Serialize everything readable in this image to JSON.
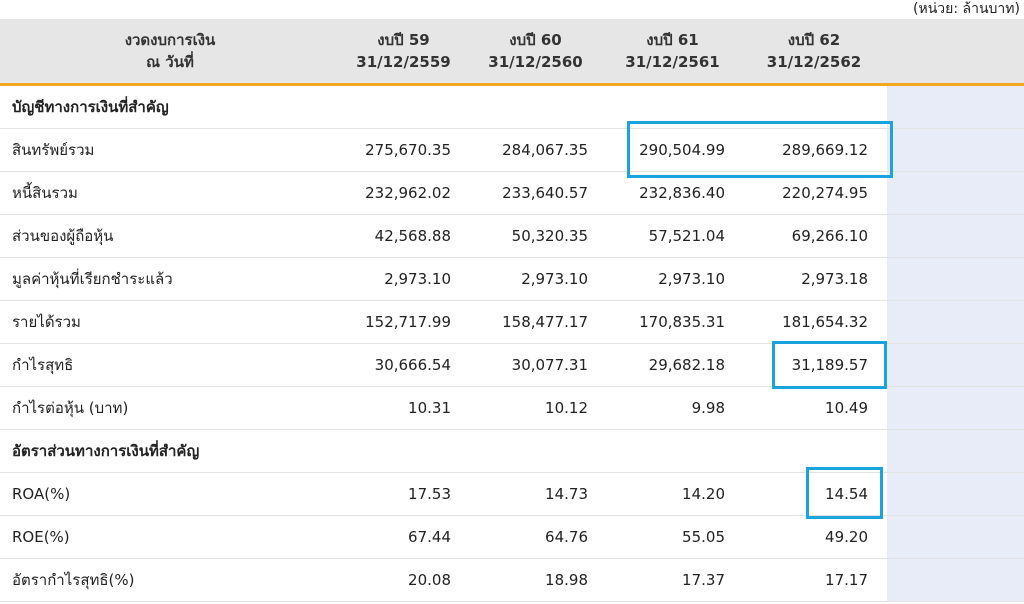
{
  "unit_label": "(หน่วย: ล้านบาท)",
  "header": {
    "label_line1": "งวดงบการเงิน",
    "label_line2": "ณ วันที่",
    "periods": [
      {
        "line1": "งบปี 59",
        "line2": "31/12/2559"
      },
      {
        "line1": "งบปี 60",
        "line2": "31/12/2560"
      },
      {
        "line1": "งบปี 61",
        "line2": "31/12/2561"
      },
      {
        "line1": "งบปี 62",
        "line2": "31/12/2562"
      }
    ]
  },
  "sections": {
    "accounts": "บัญชีทางการเงินที่สำคัญ",
    "ratios": "อัตราส่วนทางการเงินที่สำคัญ"
  },
  "rows": {
    "total_assets": {
      "label": "สินทรัพย์รวม",
      "values": [
        "275,670.35",
        "284,067.35",
        "290,504.99",
        "289,669.12"
      ]
    },
    "total_liabilities": {
      "label": "หนี้สินรวม",
      "values": [
        "232,962.02",
        "233,640.57",
        "232,836.40",
        "220,274.95"
      ]
    },
    "equity": {
      "label": "ส่วนของผู้ถือหุ้น",
      "values": [
        "42,568.88",
        "50,320.35",
        "57,521.04",
        "69,266.10"
      ]
    },
    "paid_up_capital": {
      "label": "มูลค่าหุ้นที่เรียกชำระแล้ว",
      "values": [
        "2,973.10",
        "2,973.10",
        "2,973.10",
        "2,973.18"
      ]
    },
    "total_revenue": {
      "label": "รายได้รวม",
      "values": [
        "152,717.99",
        "158,477.17",
        "170,835.31",
        "181,654.32"
      ]
    },
    "net_profit": {
      "label": "กำไรสุทธิ",
      "values": [
        "30,666.54",
        "30,077.31",
        "29,682.18",
        "31,189.57"
      ]
    },
    "eps": {
      "label": "กำไรต่อหุ้น (บาท)",
      "values": [
        "10.31",
        "10.12",
        "9.98",
        "10.49"
      ]
    },
    "roa": {
      "label": "ROA(%)",
      "values": [
        "17.53",
        "14.73",
        "14.20",
        "14.54"
      ]
    },
    "roe": {
      "label": "ROE(%)",
      "values": [
        "67.44",
        "64.76",
        "55.05",
        "49.20"
      ]
    },
    "net_margin": {
      "label": "อัตรากำไรสุทธิ(%)",
      "values": [
        "20.08",
        "18.98",
        "17.37",
        "17.17"
      ]
    }
  },
  "colors": {
    "header_bg": "#e6e6e6",
    "header_underline": "#f5a623",
    "highlight_box": "#1ba3dd",
    "extra_column": "#e8ecf8"
  }
}
